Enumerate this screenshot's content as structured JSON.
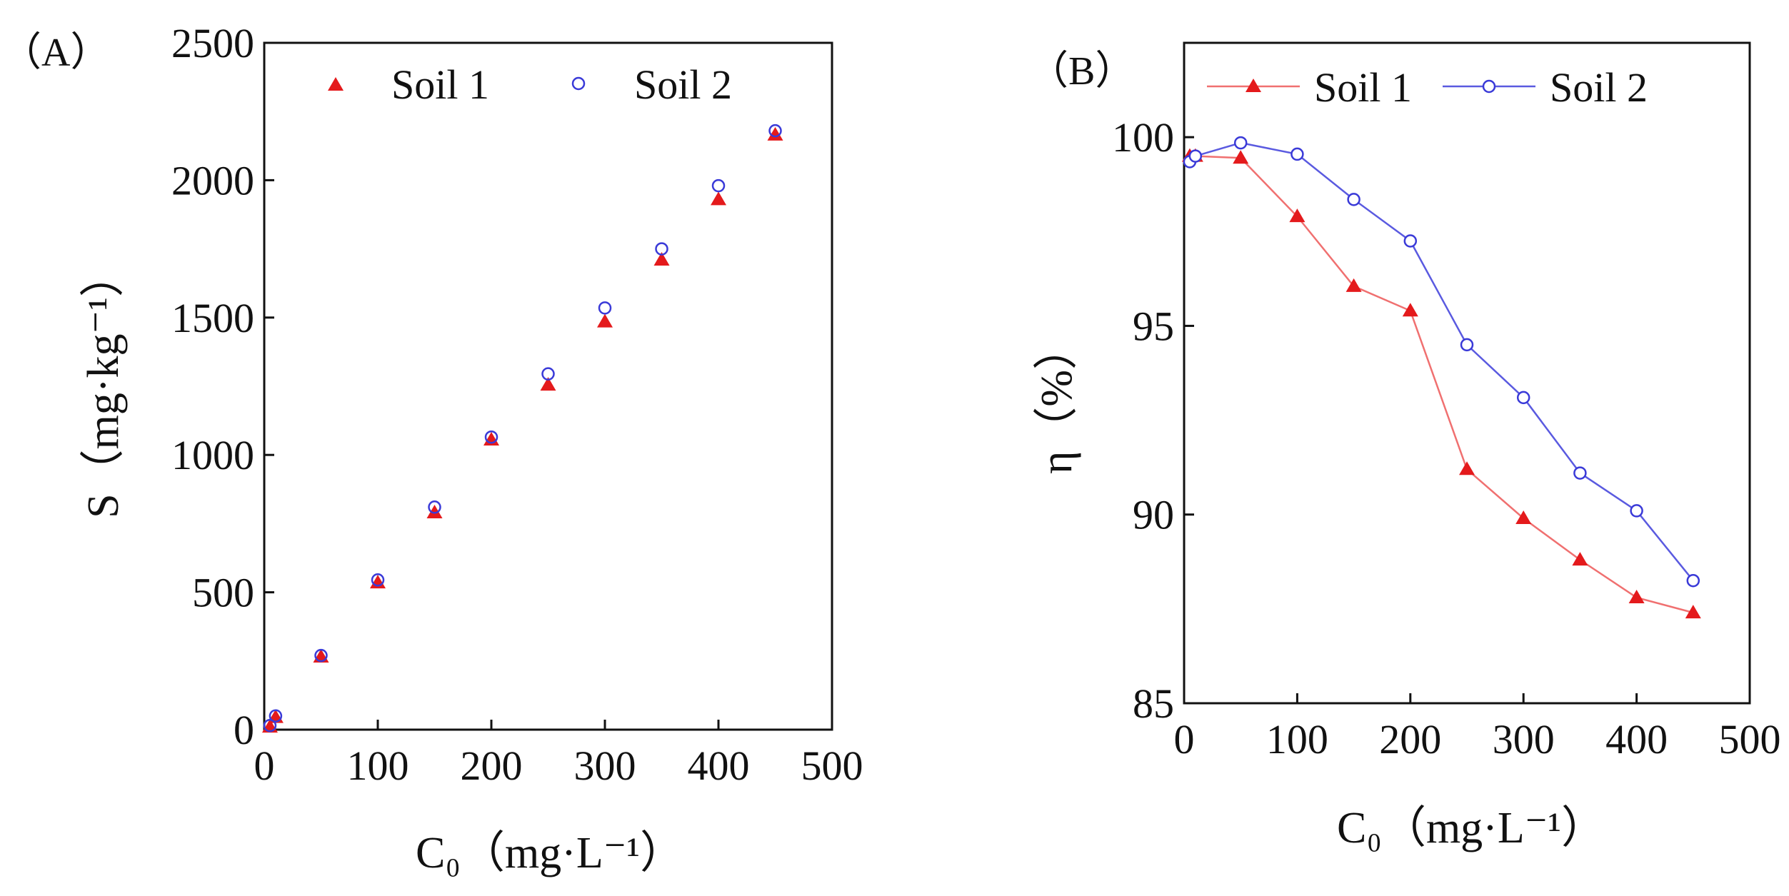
{
  "figure": {
    "panel_a_label": "（A）",
    "panel_b_label": "（B）"
  },
  "colors": {
    "soil1": "#e41a1c",
    "soil2": "#3a3ad8",
    "soil1_line": "#f07070",
    "soil2_line": "#5a5ae0"
  },
  "chart_data": [
    {
      "type": "scatter",
      "panel": "A",
      "xlabel": "C₀（mg·L⁻¹）",
      "ylabel": "S（mg·kg⁻¹）",
      "xlim": [
        0,
        500
      ],
      "ylim": [
        0,
        2500
      ],
      "xticks": [
        0,
        100,
        200,
        300,
        400,
        500
      ],
      "yticks": [
        0,
        500,
        1000,
        1500,
        2000,
        2500
      ],
      "legend_position": "top",
      "series": [
        {
          "name": "Soil 1",
          "marker": "filled-triangle",
          "x": [
            5,
            10,
            50,
            100,
            150,
            200,
            250,
            300,
            350,
            400,
            450
          ],
          "y": [
            10,
            45,
            265,
            535,
            790,
            1055,
            1255,
            1485,
            1710,
            1930,
            2165
          ]
        },
        {
          "name": "Soil 2",
          "marker": "open-circle",
          "x": [
            5,
            10,
            50,
            100,
            150,
            200,
            250,
            300,
            350,
            400,
            450
          ],
          "y": [
            15,
            50,
            270,
            545,
            810,
            1065,
            1295,
            1535,
            1750,
            1980,
            2180
          ]
        }
      ]
    },
    {
      "type": "line",
      "panel": "B",
      "xlabel": "C₀（mg·L⁻¹）",
      "ylabel": "η（%）",
      "xlim": [
        0,
        500
      ],
      "ylim": [
        85,
        102.5
      ],
      "xticks": [
        0,
        100,
        200,
        300,
        400,
        500
      ],
      "yticks": [
        85,
        90,
        95,
        100
      ],
      "legend_position": "top",
      "series": [
        {
          "name": "Soil 1",
          "marker": "filled-triangle",
          "x": [
            5,
            10,
            50,
            100,
            150,
            200,
            250,
            300,
            350,
            400,
            450
          ],
          "y": [
            99.5,
            99.5,
            99.45,
            97.9,
            96.05,
            95.4,
            91.2,
            89.9,
            88.8,
            87.8,
            87.4
          ]
        },
        {
          "name": "Soil 2",
          "marker": "open-circle",
          "x": [
            5,
            10,
            50,
            100,
            150,
            200,
            250,
            300,
            350,
            400,
            450
          ],
          "y": [
            99.35,
            99.5,
            99.85,
            99.55,
            98.35,
            97.25,
            94.5,
            93.1,
            91.1,
            90.1,
            88.25
          ]
        }
      ]
    }
  ]
}
